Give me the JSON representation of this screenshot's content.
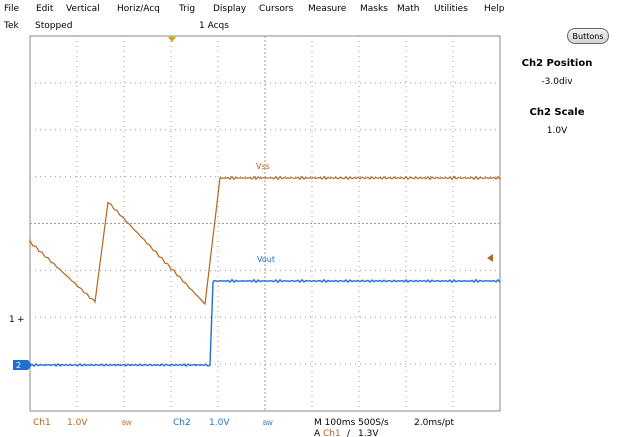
{
  "menu": [
    "File",
    "Edit",
    "Vertical",
    "Horiz/Acq",
    "Trig",
    "Display",
    "Cursors",
    "Measure",
    "Masks",
    "Math",
    "Utilities",
    "Help"
  ],
  "status": {
    "brand": "Tek",
    "run_state": "Stopped",
    "acquisitions": "1 Acqs"
  },
  "buttons_label": "Buttons",
  "side_panel": {
    "position_title": "Ch2 Position",
    "position_value": "-3.0div",
    "scale_title": "Ch2 Scale",
    "scale_value": "1.0V"
  },
  "channels": {
    "ch1": {
      "label": "Ch1",
      "scale": "1.0V",
      "bw": "BW",
      "color": "#b5651d",
      "marker": "1"
    },
    "ch2": {
      "label": "Ch2",
      "scale": "1.0V",
      "bw": "BW",
      "color": "#1f6fd1",
      "marker": "2"
    }
  },
  "timebase": {
    "line1": "M 100ms 500S/s",
    "resolution": "2.0ms/pt",
    "trigger_prefix": "A",
    "trigger_source": "Ch1",
    "trigger_slope": "∕",
    "trigger_level": "1.3V"
  },
  "trace_labels": {
    "vs": "Vss",
    "vout": "Vout"
  },
  "colors": {
    "graticule": "#8a8a8a",
    "trigger_marker": "#e0a000",
    "ch1": "#b5651d",
    "ch2": "#1f6fd1"
  }
}
